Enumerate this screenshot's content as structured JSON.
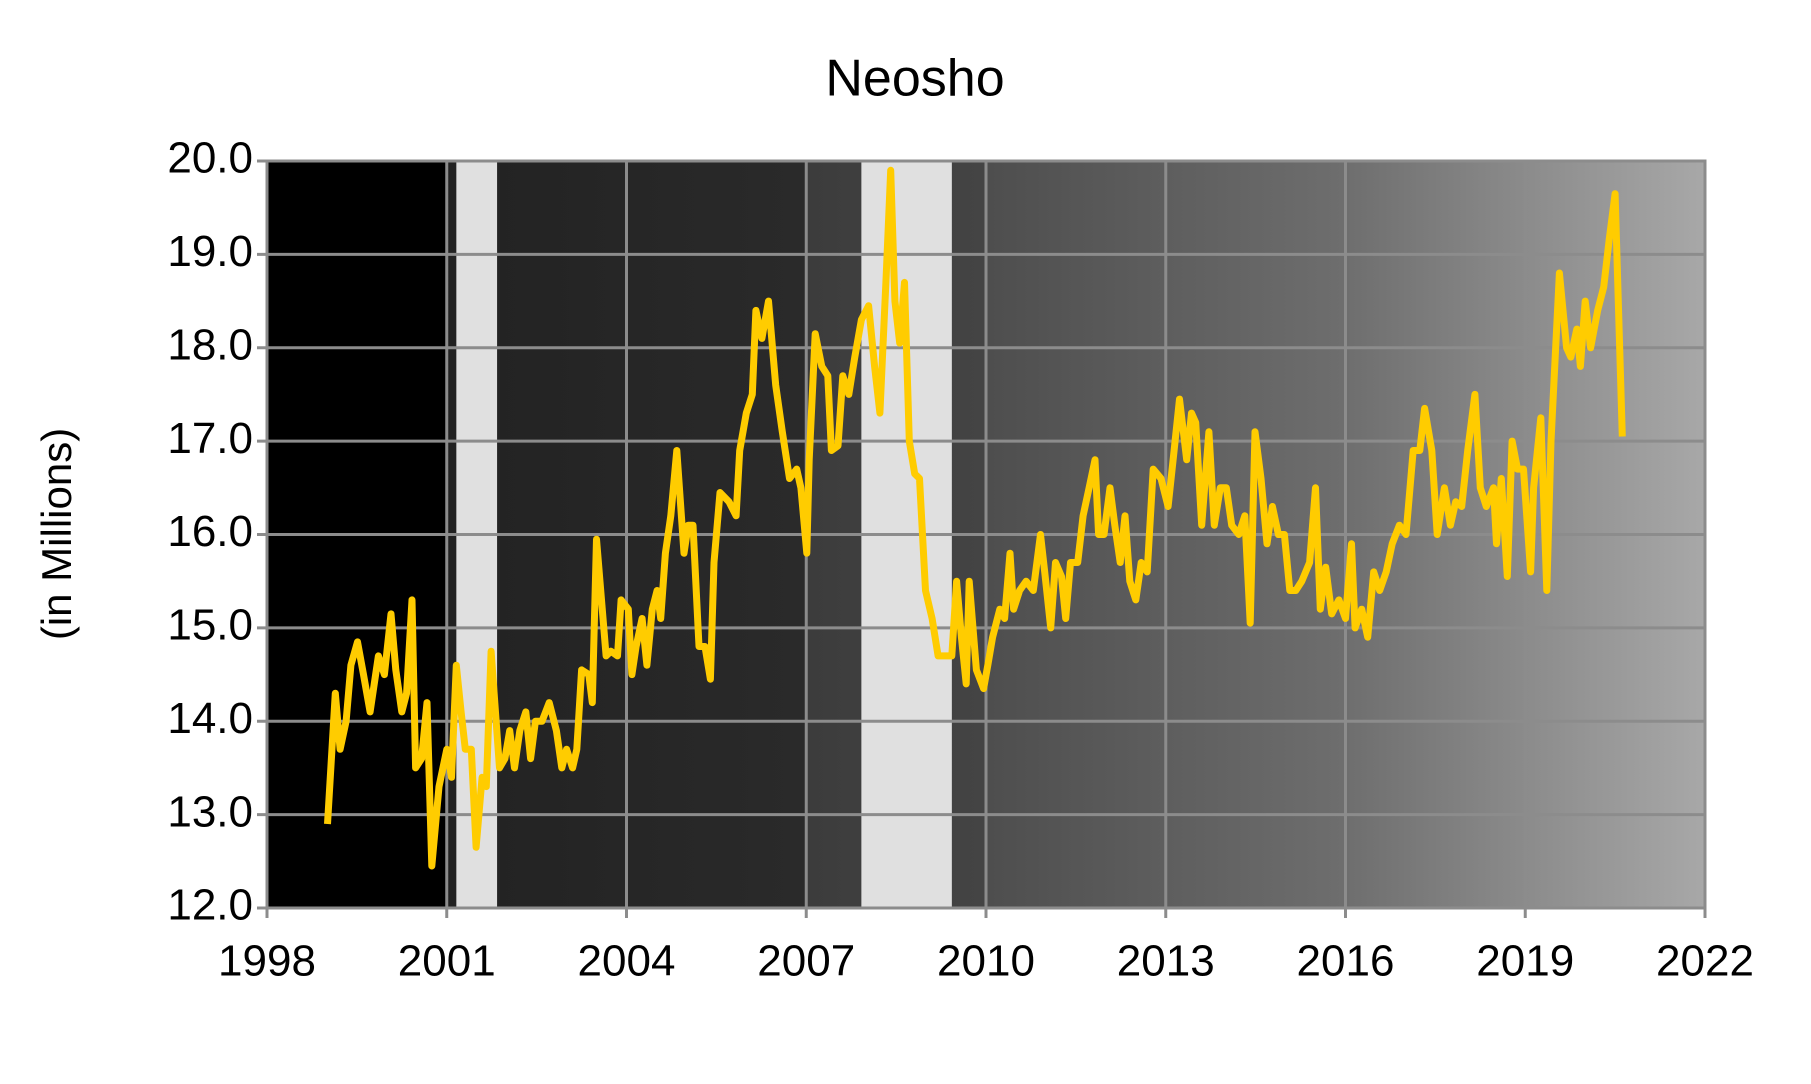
{
  "chart_data": {
    "type": "line",
    "title": "Neosho",
    "y_label": "(in Millions)",
    "xlim": [
      1998,
      2022
    ],
    "xticks": [
      1998,
      2001,
      2004,
      2007,
      2010,
      2013,
      2016,
      2019,
      2022
    ],
    "ylim": [
      12,
      20
    ],
    "yticks": [
      {
        "value": 12,
        "label": "12.0"
      },
      {
        "value": 13,
        "label": "13.0"
      },
      {
        "value": 14,
        "label": "14.0"
      },
      {
        "value": 15,
        "label": "15.0"
      },
      {
        "value": 16,
        "label": "16.0"
      },
      {
        "value": 17,
        "label": "17.0"
      },
      {
        "value": 18,
        "label": "18.0"
      },
      {
        "value": 19,
        "label": "19.0"
      },
      {
        "value": 20,
        "label": "20.0"
      }
    ],
    "grid": true,
    "shaded_periods": [
      [
        2001.16,
        2001.84
      ],
      [
        2007.92,
        2009.43
      ]
    ],
    "shade_color": "#e0e0e0",
    "series": [
      {
        "color": "#ffcc00",
        "x": [
          1999.01,
          1999.14,
          1999.22,
          1999.32,
          1999.4,
          1999.51,
          1999.61,
          1999.72,
          1999.86,
          1999.96,
          2000.07,
          2000.15,
          2000.25,
          2000.33,
          2000.42,
          2000.48,
          2000.58,
          2000.67,
          2000.75,
          2000.87,
          2001.0,
          2001.08,
          2001.16,
          2001.24,
          2001.31,
          2001.41,
          2001.49,
          2001.59,
          2001.66,
          2001.74,
          2001.88,
          2001.97,
          2002.05,
          2002.13,
          2002.22,
          2002.32,
          2002.4,
          2002.48,
          2002.59,
          2002.71,
          2002.83,
          2002.92,
          2003.0,
          2003.1,
          2003.17,
          2003.25,
          2003.37,
          2003.43,
          2003.5,
          2003.66,
          2003.74,
          2003.85,
          2003.91,
          2004.03,
          2004.09,
          2004.16,
          2004.26,
          2004.34,
          2004.43,
          2004.51,
          2004.57,
          2004.65,
          2004.74,
          2004.84,
          2004.96,
          2005.03,
          2005.11,
          2005.21,
          2005.31,
          2005.4,
          2005.46,
          2005.56,
          2005.71,
          2005.83,
          2005.89,
          2006.0,
          2006.1,
          2006.16,
          2006.26,
          2006.37,
          2006.49,
          2006.6,
          2006.72,
          2006.84,
          2006.91,
          2007.01,
          2007.05,
          2007.15,
          2007.26,
          2007.36,
          2007.42,
          2007.53,
          2007.61,
          2007.71,
          2007.81,
          2007.92,
          2008.04,
          2008.14,
          2008.23,
          2008.33,
          2008.41,
          2008.48,
          2008.56,
          2008.64,
          2008.72,
          2008.81,
          2008.89,
          2008.99,
          2009.1,
          2009.2,
          2009.34,
          2009.43,
          2009.51,
          2009.59,
          2009.67,
          2009.72,
          2009.84,
          2009.96,
          2010.03,
          2010.11,
          2010.23,
          2010.31,
          2010.4,
          2010.46,
          2010.56,
          2010.67,
          2010.79,
          2010.91,
          2010.98,
          2011.08,
          2011.16,
          2011.26,
          2011.33,
          2011.41,
          2011.53,
          2011.62,
          2011.72,
          2011.82,
          2011.88,
          2011.97,
          2012.07,
          2012.15,
          2012.24,
          2012.32,
          2012.4,
          2012.5,
          2012.59,
          2012.69,
          2012.79,
          2012.92,
          2013.04,
          2013.14,
          2013.23,
          2013.35,
          2013.43,
          2013.5,
          2013.6,
          2013.72,
          2013.81,
          2013.91,
          2014.01,
          2014.1,
          2014.22,
          2014.32,
          2014.41,
          2014.49,
          2014.59,
          2014.69,
          2014.78,
          2014.88,
          2014.98,
          2015.07,
          2015.17,
          2015.27,
          2015.4,
          2015.5,
          2015.58,
          2015.67,
          2015.77,
          2015.89,
          2016.0,
          2016.1,
          2016.16,
          2016.27,
          2016.37,
          2016.47,
          2016.57,
          2016.68,
          2016.78,
          2016.9,
          2017.01,
          2017.13,
          2017.24,
          2017.32,
          2017.44,
          2017.53,
          2017.65,
          2017.75,
          2017.84,
          2017.94,
          2018.04,
          2018.16,
          2018.25,
          2018.35,
          2018.47,
          2018.52,
          2018.6,
          2018.7,
          2018.78,
          2018.87,
          2018.97,
          2019.09,
          2019.14,
          2019.26,
          2019.36,
          2019.43,
          2019.57,
          2019.69,
          2019.76,
          2019.86,
          2019.92,
          2020.0,
          2020.09,
          2020.21,
          2020.31,
          2020.4,
          2020.5,
          2020.62
        ],
        "values": [
          12.9,
          14.3,
          13.7,
          14.0,
          14.6,
          14.85,
          14.5,
          14.1,
          14.7,
          14.5,
          15.15,
          14.55,
          14.1,
          14.3,
          15.3,
          13.5,
          13.6,
          14.2,
          12.45,
          13.3,
          13.7,
          13.4,
          14.6,
          14.1,
          13.7,
          13.7,
          12.65,
          13.4,
          13.3,
          14.75,
          13.5,
          13.6,
          13.9,
          13.5,
          13.9,
          14.1,
          13.6,
          14.0,
          14.0,
          14.2,
          13.9,
          13.5,
          13.7,
          13.5,
          13.7,
          14.55,
          14.5,
          14.2,
          15.95,
          14.7,
          14.75,
          14.7,
          15.3,
          15.2,
          14.5,
          14.8,
          15.1,
          14.6,
          15.2,
          15.4,
          15.1,
          15.8,
          16.2,
          16.9,
          15.8,
          16.1,
          16.1,
          14.8,
          14.8,
          14.45,
          15.7,
          16.45,
          16.35,
          16.2,
          16.9,
          17.3,
          17.5,
          18.4,
          18.1,
          18.5,
          17.6,
          17.1,
          16.6,
          16.7,
          16.5,
          15.8,
          16.8,
          18.15,
          17.8,
          17.7,
          16.9,
          16.95,
          17.7,
          17.5,
          17.9,
          18.3,
          18.45,
          17.8,
          17.3,
          18.7,
          19.9,
          18.5,
          18.05,
          18.7,
          17.0,
          16.65,
          16.6,
          15.4,
          15.1,
          14.7,
          14.7,
          14.7,
          15.5,
          14.9,
          14.4,
          15.5,
          14.55,
          14.35,
          14.6,
          14.9,
          15.2,
          15.1,
          15.8,
          15.2,
          15.4,
          15.5,
          15.4,
          16.0,
          15.6,
          15.0,
          15.7,
          15.55,
          15.1,
          15.7,
          15.7,
          16.2,
          16.5,
          16.8,
          16.0,
          16.0,
          16.5,
          16.1,
          15.7,
          16.2,
          15.5,
          15.3,
          15.7,
          15.6,
          16.7,
          16.6,
          16.3,
          16.9,
          17.45,
          16.8,
          17.3,
          17.2,
          16.1,
          17.1,
          16.1,
          16.5,
          16.5,
          16.1,
          16.0,
          16.2,
          15.05,
          17.1,
          16.6,
          15.9,
          16.3,
          16.0,
          16.0,
          15.4,
          15.4,
          15.5,
          15.7,
          16.5,
          15.2,
          15.65,
          15.15,
          15.3,
          15.1,
          15.9,
          15.0,
          15.2,
          14.9,
          15.6,
          15.4,
          15.6,
          15.9,
          16.1,
          16.0,
          16.9,
          16.9,
          17.35,
          16.9,
          16.0,
          16.5,
          16.1,
          16.35,
          16.3,
          16.9,
          17.5,
          16.5,
          16.3,
          16.5,
          15.9,
          16.6,
          15.55,
          17.0,
          16.7,
          16.7,
          15.6,
          16.5,
          17.25,
          15.4,
          17.0,
          18.8,
          18.0,
          17.9,
          18.2,
          17.8,
          18.5,
          18.0,
          18.4,
          18.65,
          19.15,
          19.65,
          17.05
        ]
      }
    ]
  }
}
